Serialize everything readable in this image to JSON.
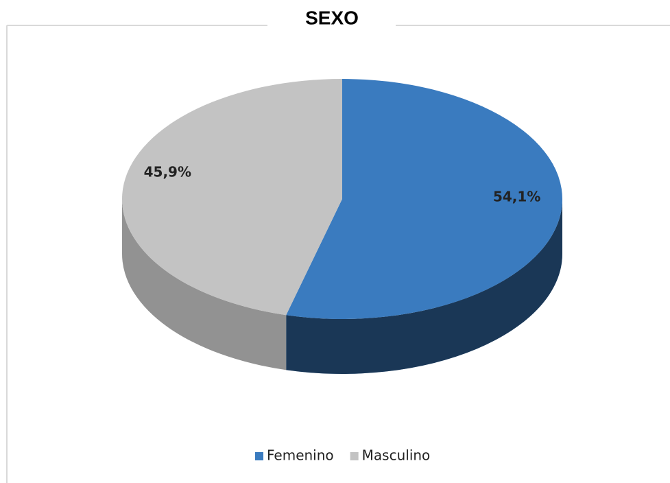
{
  "chart_data": {
    "type": "pie",
    "title": "SEXO",
    "categories": [
      "Femenino",
      "Masculino"
    ],
    "values": [
      54.1,
      45.9
    ],
    "value_labels": [
      "54,1%",
      "45,9%"
    ],
    "colors": [
      "#3a7bbf",
      "#c3c3c3"
    ],
    "legend": "bottom"
  }
}
